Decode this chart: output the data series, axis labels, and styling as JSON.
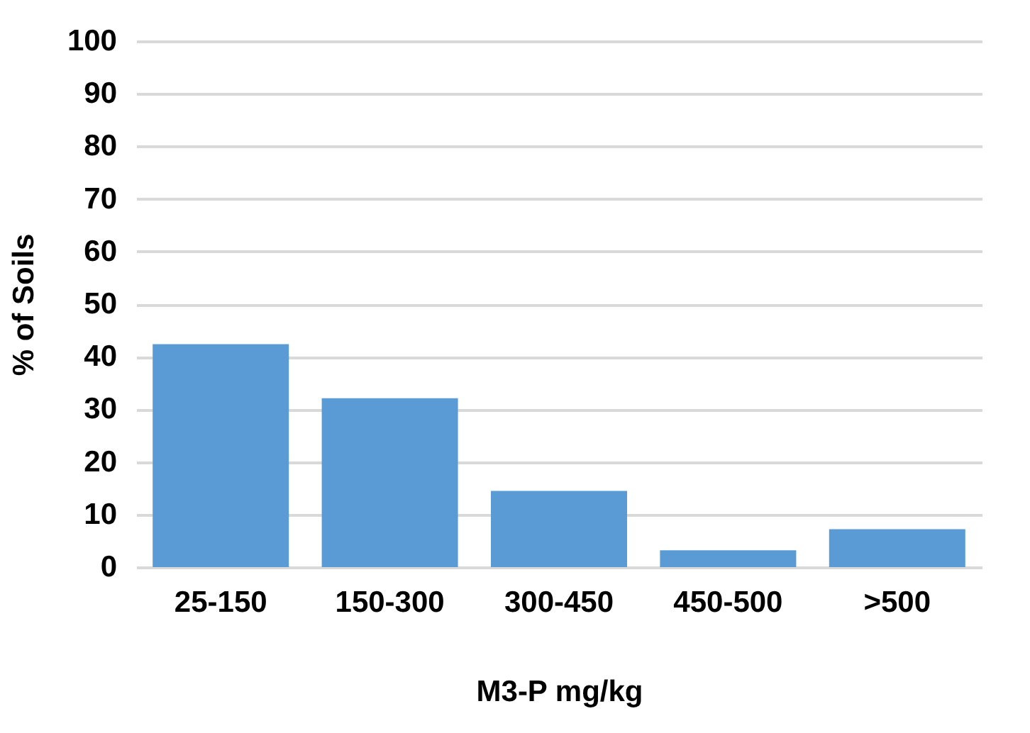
{
  "chart_data": {
    "type": "bar",
    "xlabel": "M3-P mg/kg",
    "ylabel": "% of Soils",
    "categories": [
      "25-150",
      "150-300",
      "300-450",
      "450-500",
      ">500"
    ],
    "values": [
      42.4,
      32.1,
      14.5,
      3.2,
      7.2
    ],
    "color": "#5b9bd5",
    "ylim": [
      0,
      100
    ],
    "yticks": [
      0,
      10,
      20,
      30,
      40,
      50,
      60,
      70,
      80,
      90,
      100
    ],
    "grid": "y"
  }
}
